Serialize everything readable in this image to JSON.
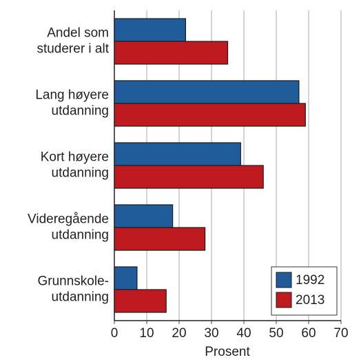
{
  "chart_data": {
    "type": "barh",
    "categories": [
      [
        "Andel som",
        "studerer i alt"
      ],
      [
        "Lang høyere",
        "utdanning"
      ],
      [
        "Kort høyere",
        "utdanning"
      ],
      [
        "Videregående",
        "utdanning"
      ],
      [
        "Grunnskole-",
        "utdanning"
      ]
    ],
    "series": [
      {
        "name": "1992",
        "color": "#1f5c99",
        "values": [
          22,
          57,
          39,
          18,
          7
        ]
      },
      {
        "name": "2013",
        "color": "#bf1a1f",
        "values": [
          35,
          59,
          46,
          28,
          16
        ]
      }
    ],
    "xlabel": "Prosent",
    "xlim": [
      0,
      70
    ],
    "xticks": [
      0,
      10,
      20,
      30,
      40,
      50,
      60,
      70
    ],
    "grid": true,
    "legend": "lower right"
  }
}
